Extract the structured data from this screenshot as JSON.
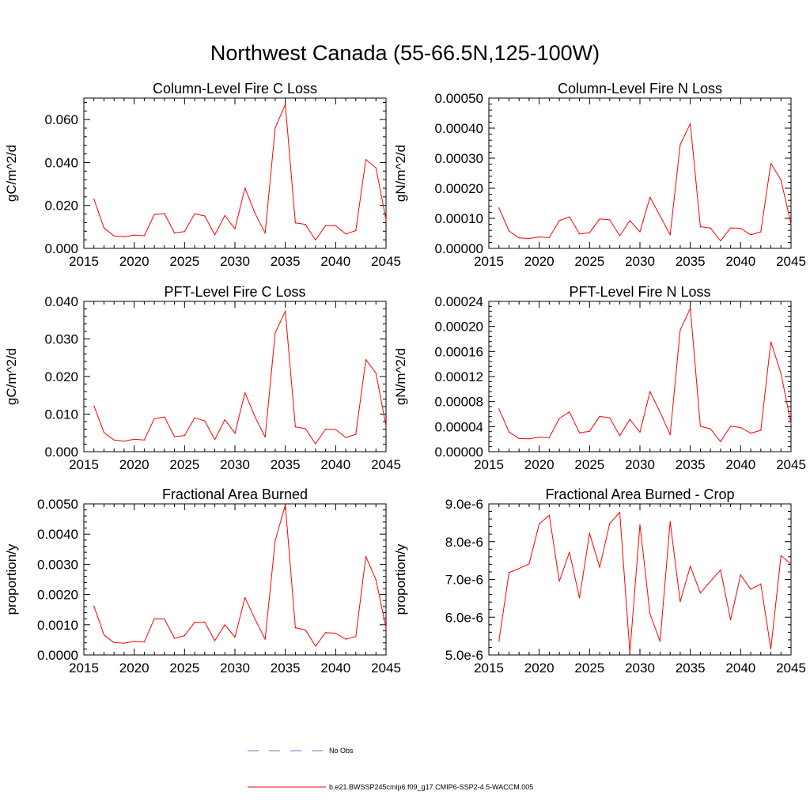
{
  "figure": {
    "title": "Northwest Canada (55-66.5N,125-100W)",
    "line_color": "#ff0000",
    "obs_color": "#7070d0"
  },
  "legend": [
    {
      "label": "No Obs",
      "style": "dashed",
      "color": "#7070d0"
    },
    {
      "label": "b.e21.BWSSP245cmip6.f09_g17.CMIP6-SSP2-4.5-WACCM.005",
      "style": "solid",
      "color": "#ff0000"
    }
  ],
  "chart_data": [
    {
      "type": "line",
      "title": "Column-Level Fire C Loss",
      "ylabel": "gC/m^2/d",
      "xlabel": "",
      "xlim": [
        2015,
        2045
      ],
      "ylim": [
        0,
        0.07
      ],
      "x_ticks": [
        2015,
        2020,
        2025,
        2030,
        2035,
        2040,
        2045
      ],
      "x_tick_labels": [
        "2015",
        "2020",
        "2025",
        "2030",
        "2035",
        "2040",
        "2045"
      ],
      "y_ticks": [
        0,
        0.02,
        0.04,
        0.06
      ],
      "y_tick_labels": [
        "0.000",
        "0.020",
        "0.040",
        "0.060"
      ],
      "x": [
        2016,
        2017,
        2018,
        2019,
        2020,
        2021,
        2022,
        2023,
        2024,
        2025,
        2026,
        2027,
        2028,
        2029,
        2030,
        2031,
        2032,
        2033,
        2034,
        2035,
        2036,
        2037,
        2038,
        2039,
        2040,
        2041,
        2042,
        2043,
        2044,
        2045
      ],
      "series": [
        {
          "values": [
            0.023,
            0.0095,
            0.0058,
            0.0054,
            0.0062,
            0.0059,
            0.0158,
            0.0162,
            0.0072,
            0.0078,
            0.0161,
            0.0151,
            0.0063,
            0.0153,
            0.0091,
            0.0281,
            0.0163,
            0.0071,
            0.0561,
            0.0671,
            0.0119,
            0.0112,
            0.0039,
            0.0106,
            0.0106,
            0.0067,
            0.0083,
            0.0414,
            0.0375,
            0.0133
          ]
        }
      ]
    },
    {
      "type": "line",
      "title": "Column-Level Fire N Loss",
      "ylabel": "gN/m^2/d",
      "xlabel": "",
      "xlim": [
        2015,
        2045
      ],
      "ylim": [
        0,
        0.0005
      ],
      "x_ticks": [
        2015,
        2020,
        2025,
        2030,
        2035,
        2040,
        2045
      ],
      "x_tick_labels": [
        "2015",
        "2020",
        "2025",
        "2030",
        "2035",
        "2040",
        "2045"
      ],
      "y_ticks": [
        0,
        0.0001,
        0.0002,
        0.0003,
        0.0004,
        0.0005
      ],
      "y_tick_labels": [
        "0.00000",
        "0.00010",
        "0.00020",
        "0.00030",
        "0.00040",
        "0.00050"
      ],
      "x": [
        2016,
        2017,
        2018,
        2019,
        2020,
        2021,
        2022,
        2023,
        2024,
        2025,
        2026,
        2027,
        2028,
        2029,
        2030,
        2031,
        2032,
        2033,
        2034,
        2035,
        2036,
        2037,
        2038,
        2039,
        2040,
        2041,
        2042,
        2043,
        2044,
        2045
      ],
      "series": [
        {
          "values": [
            0.000135,
            5.8e-05,
            3.5e-05,
            3.3e-05,
            3.8e-05,
            3.6e-05,
            9.2e-05,
            0.000105,
            4.8e-05,
            5.2e-05,
            9.8e-05,
            9.5e-05,
            4.2e-05,
            9.2e-05,
            5.5e-05,
            0.00017,
            0.000108,
            4.5e-05,
            0.000345,
            0.000415,
            7.2e-05,
            6.8e-05,
            2.5e-05,
            6.8e-05,
            6.7e-05,
            4.5e-05,
            5.5e-05,
            0.000283,
            0.000228,
            8e-05
          ]
        }
      ]
    },
    {
      "type": "line",
      "title": "PFT-Level Fire C Loss",
      "ylabel": "gC/m^2/d",
      "xlabel": "",
      "xlim": [
        2015,
        2045
      ],
      "ylim": [
        0,
        0.04
      ],
      "x_ticks": [
        2015,
        2020,
        2025,
        2030,
        2035,
        2040,
        2045
      ],
      "x_tick_labels": [
        "2015",
        "2020",
        "2025",
        "2030",
        "2035",
        "2040",
        "2045"
      ],
      "y_ticks": [
        0,
        0.01,
        0.02,
        0.03,
        0.04
      ],
      "y_tick_labels": [
        "0.000",
        "0.010",
        "0.020",
        "0.030",
        "0.040"
      ],
      "x": [
        2016,
        2017,
        2018,
        2019,
        2020,
        2021,
        2022,
        2023,
        2024,
        2025,
        2026,
        2027,
        2028,
        2029,
        2030,
        2031,
        2032,
        2033,
        2034,
        2035,
        2036,
        2037,
        2038,
        2039,
        2040,
        2041,
        2042,
        2043,
        2044,
        2045
      ],
      "series": [
        {
          "values": [
            0.0122,
            0.0051,
            0.0031,
            0.0028,
            0.0033,
            0.0031,
            0.0088,
            0.0092,
            0.004,
            0.0043,
            0.009,
            0.0082,
            0.0032,
            0.0085,
            0.0049,
            0.0157,
            0.0092,
            0.0039,
            0.0316,
            0.0374,
            0.0066,
            0.0061,
            0.0021,
            0.006,
            0.0059,
            0.0038,
            0.0046,
            0.0245,
            0.0209,
            0.0068
          ]
        }
      ]
    },
    {
      "type": "line",
      "title": "PFT-Level Fire N Loss",
      "ylabel": "gN/m^2/d",
      "xlabel": "",
      "xlim": [
        2015,
        2045
      ],
      "ylim": [
        0,
        0.00024
      ],
      "x_ticks": [
        2015,
        2020,
        2025,
        2030,
        2035,
        2040,
        2045
      ],
      "x_tick_labels": [
        "2015",
        "2020",
        "2025",
        "2030",
        "2035",
        "2040",
        "2045"
      ],
      "y_ticks": [
        0,
        4e-05,
        8e-05,
        0.00012,
        0.00016,
        0.0002,
        0.00024
      ],
      "y_tick_labels": [
        "0.00000",
        "0.00004",
        "0.00008",
        "0.00012",
        "0.00016",
        "0.00020",
        "0.00024"
      ],
      "x": [
        2016,
        2017,
        2018,
        2019,
        2020,
        2021,
        2022,
        2023,
        2024,
        2025,
        2026,
        2027,
        2028,
        2029,
        2030,
        2031,
        2032,
        2033,
        2034,
        2035,
        2036,
        2037,
        2038,
        2039,
        2040,
        2041,
        2042,
        2043,
        2044,
        2045
      ],
      "series": [
        {
          "values": [
            6.85e-05,
            3.15e-05,
            2.1e-05,
            2.05e-05,
            2.3e-05,
            2.25e-05,
            5.3e-05,
            6.35e-05,
            3e-05,
            3.25e-05,
            5.65e-05,
            5.4e-05,
            2.55e-05,
            5.15e-05,
            3.1e-05,
            9.6e-05,
            6.3e-05,
            2.7e-05,
            0.000194,
            0.000229,
            4.05e-05,
            3.65e-05,
            1.6e-05,
            4.05e-05,
            3.85e-05,
            2.95e-05,
            3.4e-05,
            0.0001755,
            0.000125,
            4.45e-05
          ]
        }
      ]
    },
    {
      "type": "line",
      "title": "Fractional Area Burned",
      "ylabel": "proportion/y",
      "xlabel": "",
      "xlim": [
        2015,
        2045
      ],
      "ylim": [
        0,
        0.005
      ],
      "x_ticks": [
        2015,
        2020,
        2025,
        2030,
        2035,
        2040,
        2045
      ],
      "x_tick_labels": [
        "2015",
        "2020",
        "2025",
        "2030",
        "2035",
        "2040",
        "2045"
      ],
      "y_ticks": [
        0,
        0.001,
        0.002,
        0.003,
        0.004,
        0.005
      ],
      "y_tick_labels": [
        "0.0000",
        "0.0010",
        "0.0020",
        "0.0030",
        "0.0040",
        "0.0050"
      ],
      "x": [
        2016,
        2017,
        2018,
        2019,
        2020,
        2021,
        2022,
        2023,
        2024,
        2025,
        2026,
        2027,
        2028,
        2029,
        2030,
        2031,
        2032,
        2033,
        2034,
        2035,
        2036,
        2037,
        2038,
        2039,
        2040,
        2041,
        2042,
        2043,
        2044,
        2045
      ],
      "series": [
        {
          "values": [
            0.00162,
            0.00066,
            0.00041,
            0.00039,
            0.00045,
            0.00043,
            0.0012,
            0.00119,
            0.00055,
            0.00064,
            0.00108,
            0.00109,
            0.00047,
            0.001,
            0.00059,
            0.0019,
            0.00118,
            0.00052,
            0.00378,
            0.00497,
            0.0009,
            0.00083,
            0.00029,
            0.00074,
            0.00072,
            0.00052,
            0.00061,
            0.00326,
            0.00249,
            0.0009
          ]
        }
      ]
    },
    {
      "type": "line",
      "title": "Fractional Area Burned - Crop",
      "ylabel": "proportion/y",
      "xlabel": "",
      "xlim": [
        2015,
        2045
      ],
      "ylim": [
        5e-06,
        9e-06
      ],
      "x_ticks": [
        2015,
        2020,
        2025,
        2030,
        2035,
        2040,
        2045
      ],
      "x_tick_labels": [
        "2015",
        "2020",
        "2025",
        "2030",
        "2035",
        "2040",
        "2045"
      ],
      "y_ticks": [
        5e-06,
        6e-06,
        7e-06,
        8e-06,
        9e-06
      ],
      "y_tick_labels": [
        "5.0e-6",
        "6.0e-6",
        "7.0e-6",
        "8.0e-6",
        "9.0e-6"
      ],
      "x": [
        2016,
        2017,
        2018,
        2019,
        2020,
        2021,
        2022,
        2023,
        2024,
        2025,
        2026,
        2027,
        2028,
        2029,
        2030,
        2031,
        2032,
        2033,
        2034,
        2035,
        2036,
        2037,
        2038,
        2039,
        2040,
        2041,
        2042,
        2043,
        2044,
        2045
      ],
      "series": [
        {
          "values": [
            5.36e-06,
            7.18e-06,
            7.29e-06,
            7.41e-06,
            8.47e-06,
            8.7e-06,
            6.95e-06,
            7.72e-06,
            6.51e-06,
            8.22e-06,
            7.32e-06,
            8.48e-06,
            8.78e-06,
            5.06e-06,
            8.45e-06,
            6.09e-06,
            5.36e-06,
            8.53e-06,
            6.41e-06,
            7.35e-06,
            6.64e-06,
            6.95e-06,
            7.25e-06,
            5.93e-06,
            7.12e-06,
            6.74e-06,
            6.88e-06,
            5.16e-06,
            7.63e-06,
            7.41e-06
          ]
        }
      ]
    }
  ]
}
